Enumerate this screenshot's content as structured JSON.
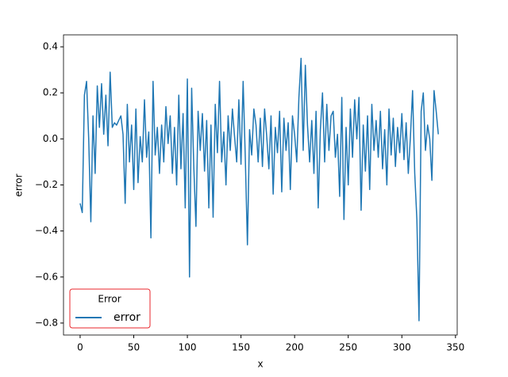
{
  "chart_data": {
    "type": "line",
    "xlabel": "x",
    "ylabel": "error",
    "legend_title": "Error",
    "legend_loc": "lower left",
    "x": [
      0,
      2,
      4,
      6,
      8,
      10,
      12,
      14,
      16,
      18,
      20,
      22,
      24,
      26,
      28,
      30,
      32,
      34,
      36,
      38,
      40,
      42,
      44,
      46,
      48,
      50,
      52,
      54,
      56,
      58,
      60,
      62,
      64,
      66,
      68,
      70,
      72,
      74,
      76,
      78,
      80,
      82,
      84,
      86,
      88,
      90,
      92,
      94,
      96,
      98,
      100,
      102,
      104,
      106,
      108,
      110,
      112,
      114,
      116,
      118,
      120,
      122,
      124,
      126,
      128,
      130,
      132,
      134,
      136,
      138,
      140,
      142,
      144,
      146,
      148,
      150,
      152,
      154,
      156,
      158,
      160,
      162,
      164,
      166,
      168,
      170,
      172,
      174,
      176,
      178,
      180,
      182,
      184,
      186,
      188,
      190,
      192,
      194,
      196,
      198,
      200,
      202,
      204,
      206,
      208,
      210,
      212,
      214,
      216,
      218,
      220,
      222,
      224,
      226,
      228,
      230,
      232,
      234,
      236,
      238,
      240,
      242,
      244,
      246,
      248,
      250,
      252,
      254,
      256,
      258,
      260,
      262,
      264,
      266,
      268,
      270,
      272,
      274,
      276,
      278,
      280,
      282,
      284,
      286,
      288,
      290,
      292,
      294,
      296,
      298,
      300,
      302,
      304,
      306,
      308,
      310,
      312,
      314,
      316,
      318,
      320,
      322,
      324,
      326,
      328,
      330,
      332,
      334
    ],
    "series": [
      {
        "name": "error",
        "color": "#1f77b4",
        "values": [
          -0.28,
          -0.32,
          0.19,
          0.25,
          0.0,
          -0.36,
          0.1,
          -0.15,
          0.23,
          0.05,
          0.24,
          0.02,
          0.19,
          -0.03,
          0.29,
          0.05,
          0.07,
          0.06,
          0.08,
          0.1,
          0.02,
          -0.28,
          0.15,
          -0.1,
          0.06,
          -0.22,
          0.13,
          -0.19,
          0.01,
          -0.1,
          0.17,
          -0.08,
          0.03,
          -0.43,
          0.25,
          -0.07,
          0.05,
          -0.15,
          0.06,
          -0.1,
          0.14,
          -0.02,
          0.1,
          -0.15,
          0.05,
          -0.2,
          0.19,
          -0.13,
          0.11,
          -0.3,
          0.26,
          -0.6,
          0.22,
          -0.12,
          -0.38,
          0.12,
          -0.05,
          0.11,
          -0.14,
          0.08,
          -0.3,
          0.06,
          -0.34,
          0.15,
          -0.06,
          0.25,
          -0.1,
          0.03,
          -0.2,
          0.1,
          -0.05,
          0.13,
          0.01,
          -0.1,
          0.17,
          -0.11,
          0.25,
          -0.08,
          -0.46,
          0.04,
          -0.07,
          0.13,
          0.06,
          -0.1,
          0.09,
          -0.12,
          0.13,
          0.01,
          -0.13,
          0.1,
          -0.24,
          0.05,
          -0.06,
          0.12,
          -0.23,
          0.09,
          -0.05,
          0.07,
          -0.22,
          0.1,
          0.02,
          -0.1,
          0.18,
          0.35,
          -0.05,
          0.32,
          0.06,
          -0.1,
          0.08,
          -0.15,
          0.12,
          -0.3,
          0.04,
          0.2,
          -0.1,
          0.15,
          -0.05,
          0.1,
          0.12,
          -0.08,
          0.02,
          -0.25,
          0.18,
          -0.35,
          0.05,
          -0.2,
          0.13,
          -0.08,
          0.17,
          0.0,
          0.18,
          -0.31,
          0.06,
          -0.14,
          0.1,
          -0.22,
          0.15,
          -0.05,
          0.08,
          -0.08,
          0.12,
          -0.13,
          0.04,
          -0.2,
          0.13,
          -0.07,
          0.09,
          -0.12,
          0.05,
          -0.06,
          0.11,
          -0.09,
          0.07,
          -0.15,
          0.01,
          0.21,
          -0.15,
          -0.35,
          -0.79,
          0.12,
          0.2,
          -0.05,
          0.06,
          0.0,
          -0.18,
          0.21,
          0.12,
          0.02
        ]
      }
    ],
    "xlim": [
      -15.5,
      351.6
    ],
    "xticks": [
      0,
      50,
      100,
      150,
      200,
      250,
      300,
      350
    ],
    "ylim": [
      -0.852,
      0.452
    ],
    "yticks": [
      {
        "value": -0.8,
        "label": "−0.8"
      },
      {
        "value": -0.6,
        "label": "−0.6"
      },
      {
        "value": -0.4,
        "label": "−0.4"
      },
      {
        "value": -0.2,
        "label": "−0.2"
      },
      {
        "value": 0,
        "label": "0.0"
      },
      0.2,
      0.4
    ]
  }
}
